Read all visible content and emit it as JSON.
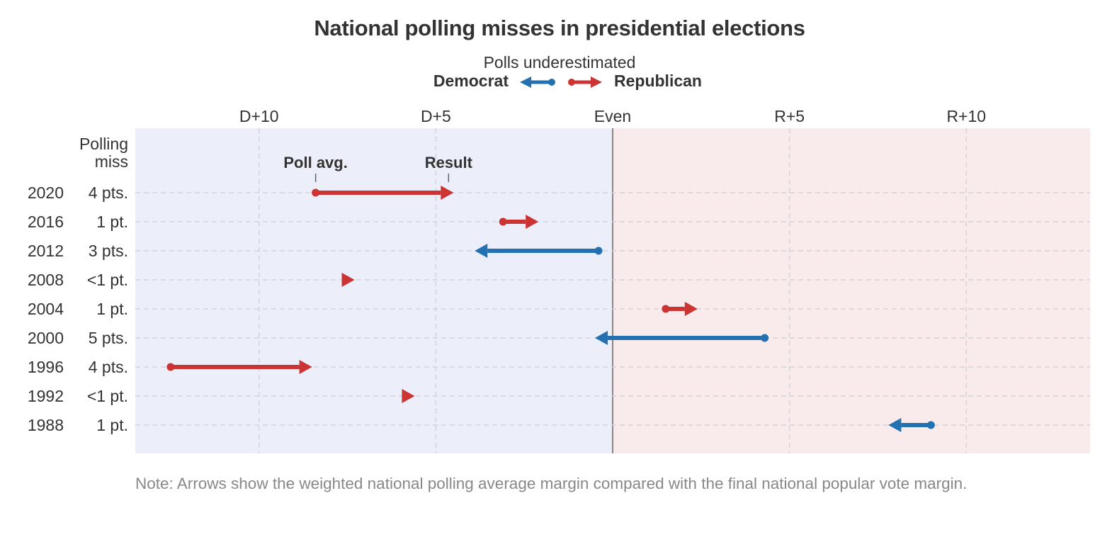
{
  "chart_data": {
    "type": "arrow-range",
    "title": "National polling misses in presidential elections",
    "legend": {
      "heading": "Polls underestimated",
      "democrat_label": "Democrat",
      "republican_label": "Republican"
    },
    "x_tick_labels": [
      "D+10",
      "D+5",
      "Even",
      "R+5",
      "R+10"
    ],
    "x_tick_values": [
      -10,
      -5,
      0,
      5,
      10
    ],
    "xlim": [
      -13.5,
      13.5
    ],
    "grid": true,
    "row_header": "Polling miss",
    "annotations": {
      "start": "Poll avg.",
      "end": "Result"
    },
    "rows": [
      {
        "year": "2020",
        "miss": "4 pts.",
        "poll_avg": -8.4,
        "result": -4.5,
        "underestimated": "republican"
      },
      {
        "year": "2016",
        "miss": "1 pt.",
        "poll_avg": -3.1,
        "result": -2.1,
        "underestimated": "republican"
      },
      {
        "year": "2012",
        "miss": "3 pts.",
        "poll_avg": -0.4,
        "result": -3.9,
        "underestimated": "democrat"
      },
      {
        "year": "2008",
        "miss": "<1 pt.",
        "poll_avg": -7.5,
        "result": -7.3,
        "underestimated": "republican"
      },
      {
        "year": "2004",
        "miss": "1 pt.",
        "poll_avg": 1.5,
        "result": 2.4,
        "underestimated": "republican"
      },
      {
        "year": "2000",
        "miss": "5 pts.",
        "poll_avg": 4.3,
        "result": -0.5,
        "underestimated": "democrat"
      },
      {
        "year": "1996",
        "miss": "4 pts.",
        "poll_avg": -12.5,
        "result": -8.5,
        "underestimated": "republican"
      },
      {
        "year": "1992",
        "miss": "<1 pt.",
        "poll_avg": -5.9,
        "result": -5.6,
        "underestimated": "republican"
      },
      {
        "year": "1988",
        "miss": "1 pt.",
        "poll_avg": 9.0,
        "result": 7.8,
        "underestimated": "democrat"
      }
    ],
    "colors": {
      "democrat": "#2471b1",
      "republican": "#cc3333",
      "dem_background": "#eceef9",
      "rep_background": "#f9eaeb"
    }
  },
  "note": "Note: Arrows show the weighted national polling average margin compared with the final national popular vote margin."
}
